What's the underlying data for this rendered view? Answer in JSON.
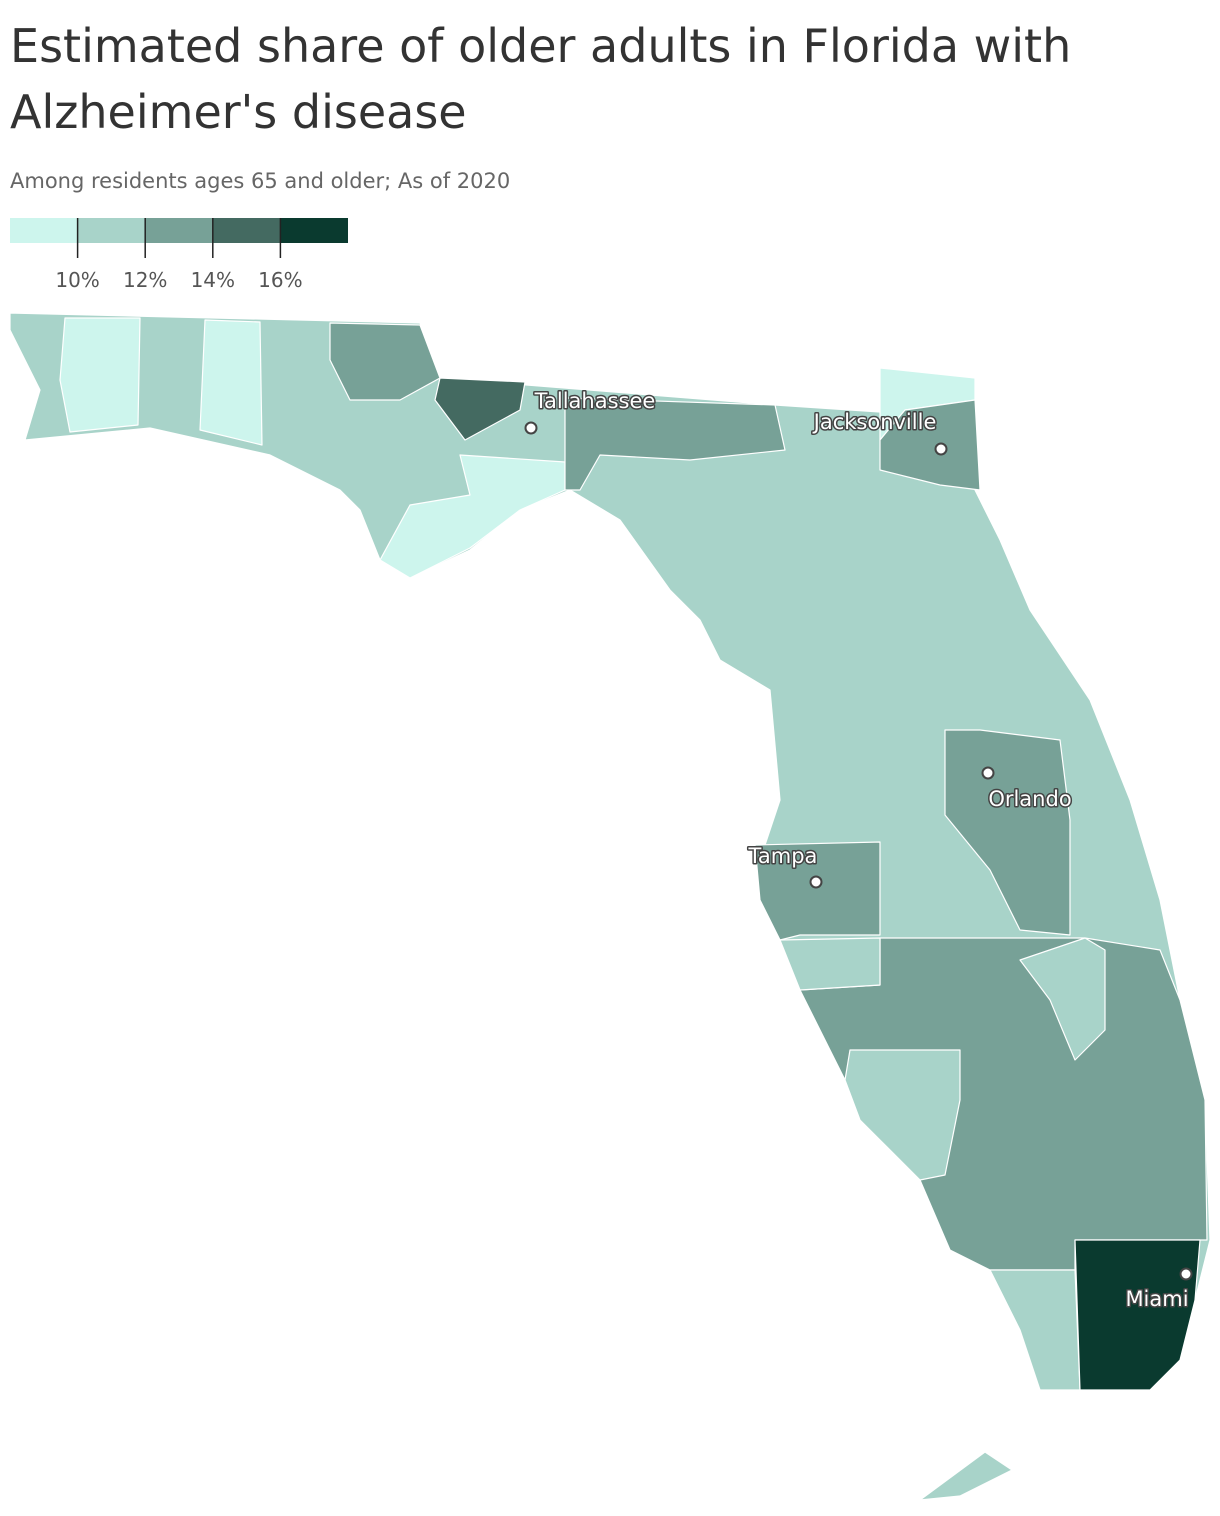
{
  "header": {
    "title_lines": [
      "Estimated share of older adults in Florida with",
      "Alzheimer's disease"
    ],
    "subtitle": "Among residents ages 65 and older; As of 2020"
  },
  "legend": {
    "colors": [
      "#cdf5ed",
      "#a8d3c9",
      "#77a197",
      "#446a61",
      "#0a3a2f"
    ],
    "lim": [
      8,
      18
    ],
    "ticks": [
      {
        "value": 10,
        "label": "10%"
      },
      {
        "value": 12,
        "label": "12%"
      },
      {
        "value": 14,
        "label": "14%"
      },
      {
        "value": 16,
        "label": "16%"
      }
    ]
  },
  "cities": [
    "Tallahassee",
    "Jacksonville",
    "Orlando",
    "Tampa",
    "Miami"
  ]
}
